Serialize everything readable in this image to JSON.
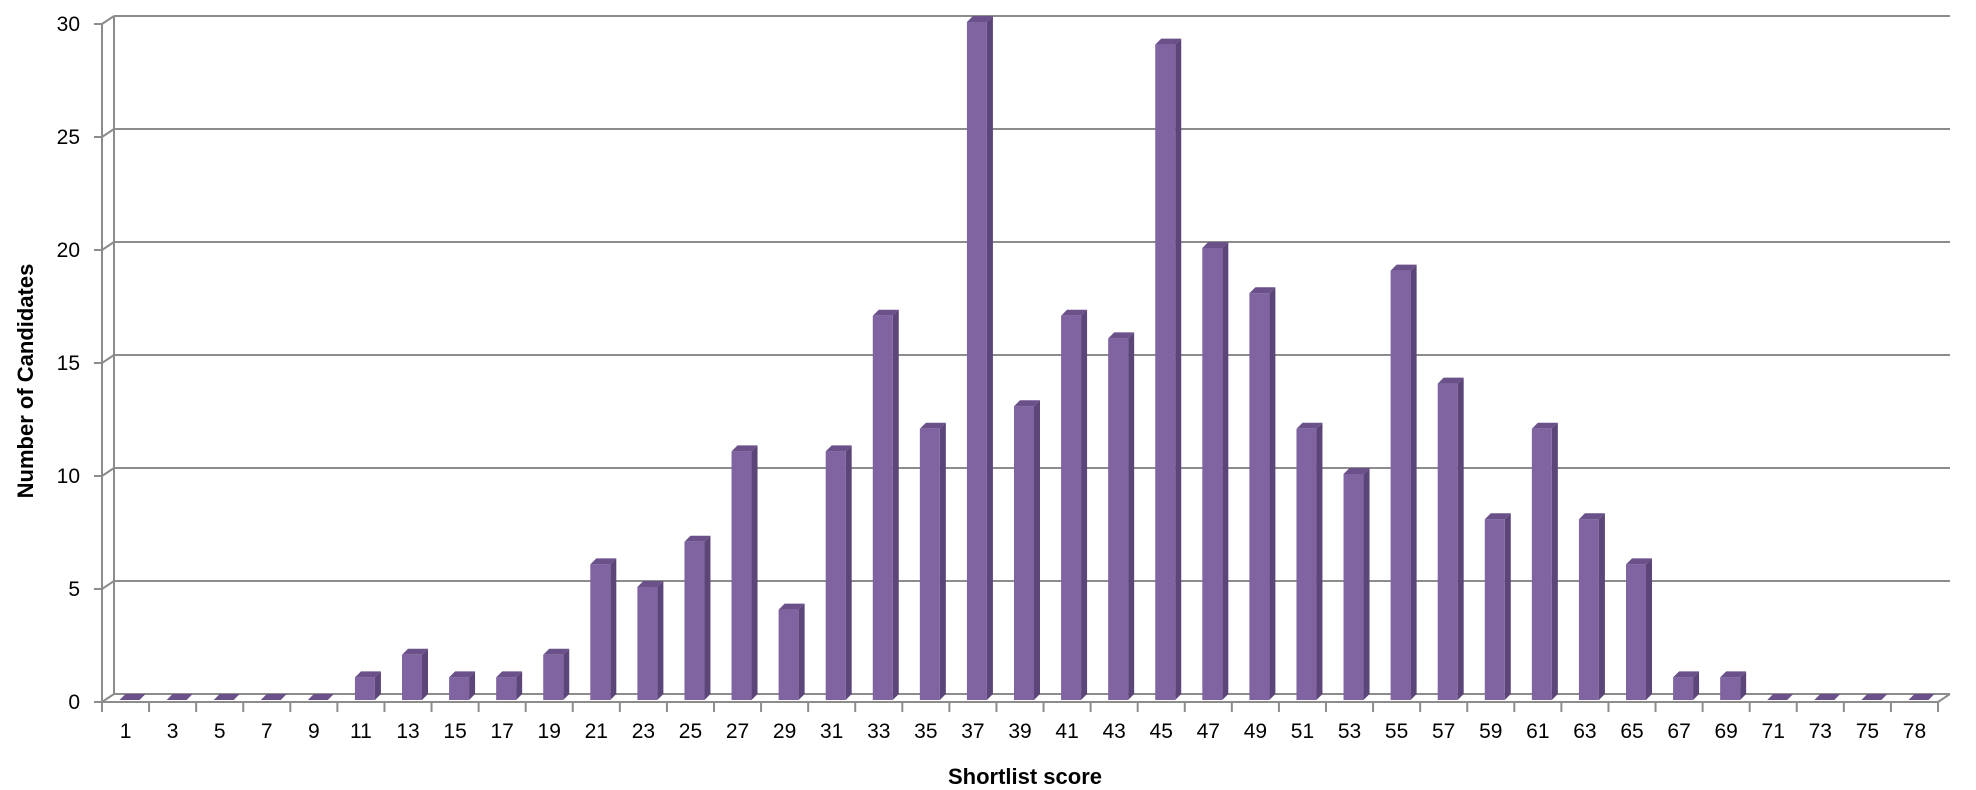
{
  "chart_data": {
    "type": "bar",
    "title": "",
    "xlabel": "Shortlist score",
    "ylabel": "Number of Candidates",
    "ylim": [
      0,
      30
    ],
    "yticks": [
      0,
      5,
      10,
      15,
      20,
      25,
      30
    ],
    "grid": true,
    "legend": "none",
    "style": "3d-columns",
    "bar_color": "#8064a2",
    "bar_side_color": "#5c4679",
    "bar_top_color": "#6b5189",
    "grid_color": "#8c8c8c",
    "categories": [
      "1",
      "3",
      "5",
      "7",
      "9",
      "11",
      "13",
      "15",
      "17",
      "19",
      "21",
      "23",
      "25",
      "27",
      "29",
      "31",
      "33",
      "35",
      "37",
      "39",
      "41",
      "43",
      "45",
      "47",
      "49",
      "51",
      "53",
      "55",
      "57",
      "59",
      "61",
      "63",
      "65",
      "67",
      "69",
      "71",
      "73",
      "75",
      "78"
    ],
    "values": [
      0,
      0,
      0,
      0,
      0,
      1,
      2,
      1,
      1,
      2,
      6,
      5,
      7,
      11,
      4,
      11,
      17,
      12,
      30,
      13,
      17,
      16,
      29,
      20,
      18,
      12,
      10,
      19,
      14,
      8,
      12,
      8,
      6,
      1,
      1,
      0,
      0,
      0,
      0
    ]
  }
}
